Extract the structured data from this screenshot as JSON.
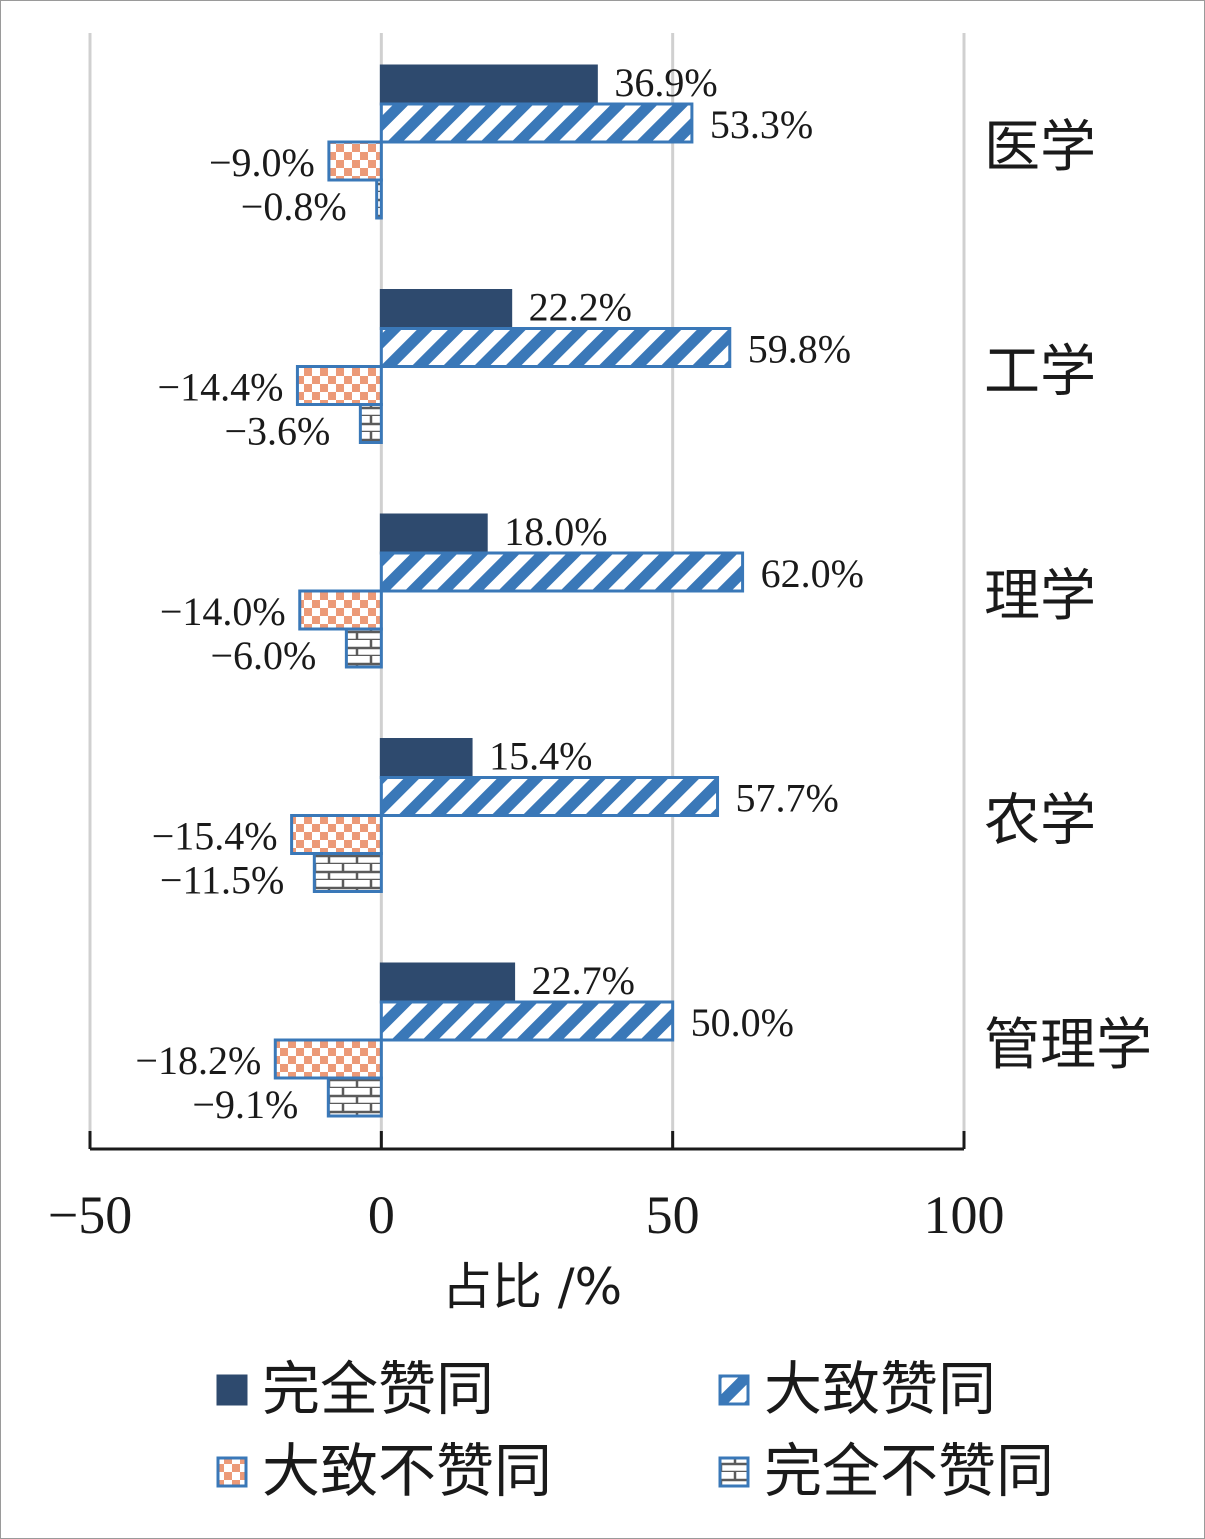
{
  "chart_data": {
    "type": "bar",
    "orientation": "horizontal",
    "categories": [
      "医学",
      "工学",
      "理学",
      "农学",
      "管理学"
    ],
    "series": [
      {
        "name": "完全赞同",
        "values": [
          36.9,
          22.2,
          18.0,
          15.4,
          22.7
        ],
        "labels": [
          "36.9%",
          "22.2%",
          "18.0%",
          "15.4%",
          "22.7%"
        ],
        "color": "#2e4a6e",
        "pattern": "solid"
      },
      {
        "name": "大致赞同",
        "values": [
          53.3,
          59.8,
          62.0,
          57.7,
          50.0
        ],
        "labels": [
          "53.3%",
          "59.8%",
          "62.0%",
          "57.7%",
          "50.0%"
        ],
        "color": "#3a78b8",
        "pattern": "diagonal-stripes"
      },
      {
        "name": "大致不赞同",
        "values": [
          -9.0,
          -14.4,
          -14.0,
          -15.4,
          -18.2
        ],
        "labels": [
          "−9.0%",
          "−14.4%",
          "−14.0%",
          "−15.4%",
          "−18.2%"
        ],
        "color": "#ec9a78",
        "pattern": "checker"
      },
      {
        "name": "完全不赞同",
        "values": [
          -0.8,
          -3.6,
          -6.0,
          -11.5,
          -9.1
        ],
        "labels": [
          "−0.8%",
          "−3.6%",
          "−6.0%",
          "−11.5%",
          "−9.1%"
        ],
        "color": "#5b5b5b",
        "pattern": "brick"
      }
    ],
    "xlim": [
      -50,
      100
    ],
    "xticks": [
      -50,
      0,
      50,
      100
    ],
    "xtick_labels": [
      "−50",
      "0",
      "50",
      "100"
    ],
    "xlabel": "占比 /%",
    "ylabel": "",
    "title": "",
    "grid": true,
    "legend_position": "bottom"
  }
}
